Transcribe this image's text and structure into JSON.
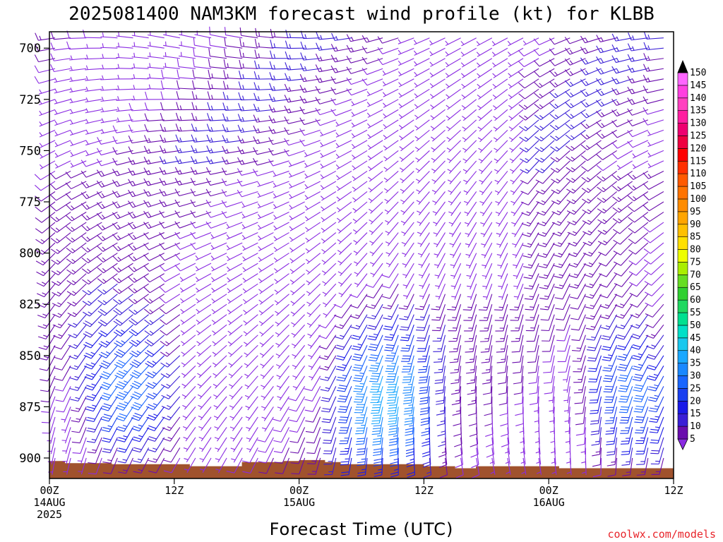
{
  "chart_data": {
    "type": "wind_barb_profile",
    "title": "2025081400 NAM3KM forecast wind profile (kt) for KLBB",
    "xlabel": "Forecast Time (UTC)",
    "ylabel": "",
    "y_axis": {
      "unit": "hPa",
      "range": [
        910,
        692
      ],
      "ticks": [
        700,
        725,
        750,
        775,
        800,
        825,
        850,
        875,
        900
      ]
    },
    "x_axis": {
      "unit": "forecast hour",
      "range": [
        0,
        60
      ],
      "ticks": [
        {
          "hour": 0,
          "lines": [
            "00Z",
            "14AUG",
            "2025"
          ]
        },
        {
          "hour": 12,
          "lines": [
            "12Z"
          ]
        },
        {
          "hour": 24,
          "lines": [
            "00Z",
            "15AUG"
          ]
        },
        {
          "hour": 36,
          "lines": [
            "12Z"
          ]
        },
        {
          "hour": 48,
          "lines": [
            "00Z",
            "16AUG"
          ]
        },
        {
          "hour": 60,
          "lines": [
            "12Z"
          ]
        }
      ]
    },
    "colorbar": {
      "unit": "kt",
      "levels": [
        5,
        10,
        15,
        20,
        25,
        30,
        35,
        40,
        45,
        50,
        55,
        60,
        65,
        70,
        75,
        80,
        85,
        90,
        95,
        100,
        105,
        110,
        115,
        120,
        125,
        130,
        135,
        140,
        145,
        150
      ],
      "colors": [
        "#8a2be2",
        "#6a0dad",
        "#3a1fd6",
        "#1a1ae8",
        "#1a40f0",
        "#1a66ff",
        "#1a88ff",
        "#1aa8ff",
        "#19c8ee",
        "#00e0c8",
        "#00e090",
        "#20d860",
        "#30d030",
        "#66dd22",
        "#aaee00",
        "#eeff00",
        "#ffe000",
        "#ffc000",
        "#ffa500",
        "#ff8c00",
        "#ff7300",
        "#ff5a00",
        "#ff3000",
        "#ff0000",
        "#ee0040",
        "#ee0070",
        "#ff20a0",
        "#ff40c0",
        "#ff40e0",
        "#ff66ff"
      ]
    },
    "terrain": {
      "color": "#a0522d",
      "surface_pressure": [
        [
          0,
          901.5
        ],
        [
          1.5,
          901.5
        ],
        [
          1.5,
          902.5
        ],
        [
          6,
          902.5
        ],
        [
          6,
          903
        ],
        [
          13.5,
          903
        ],
        [
          13.5,
          904
        ],
        [
          18.5,
          904
        ],
        [
          18.5,
          902
        ],
        [
          22.5,
          902
        ],
        [
          22.5,
          901.5
        ],
        [
          24,
          901.5
        ],
        [
          24,
          901
        ],
        [
          26.5,
          901
        ],
        [
          26.5,
          902
        ],
        [
          28,
          902
        ],
        [
          28,
          903
        ],
        [
          36,
          903
        ],
        [
          36,
          904
        ],
        [
          39,
          904
        ],
        [
          39,
          905
        ],
        [
          41,
          905
        ],
        [
          41,
          904
        ],
        [
          49,
          904
        ],
        [
          49,
          905
        ],
        [
          60,
          905
        ]
      ]
    },
    "barb_grid": {
      "hours": [
        0,
        1.5,
        3,
        4.5,
        6,
        7.5,
        9,
        10.5,
        12,
        13.5,
        15,
        16.5,
        18,
        19.5,
        21,
        22.5,
        24,
        25.5,
        27,
        28.5,
        30,
        31.5,
        33,
        34.5,
        36,
        37.5,
        39,
        40.5,
        42,
        43.5,
        45,
        46.5,
        48,
        49.5,
        51,
        52.5,
        54,
        55.5,
        57,
        58.5,
        60
      ],
      "pressure_levels": [
        695,
        700,
        705,
        710,
        715,
        720,
        725,
        730,
        735,
        740,
        745,
        750,
        755,
        760,
        765,
        770,
        775,
        780,
        785,
        790,
        795,
        800,
        805,
        810,
        815,
        820,
        825,
        830,
        835,
        840,
        845,
        850,
        855,
        860,
        865,
        870,
        875,
        880,
        885,
        890,
        895,
        900,
        905
      ],
      "description_note": ""
    }
  },
  "credit": "coolwx.com/models"
}
